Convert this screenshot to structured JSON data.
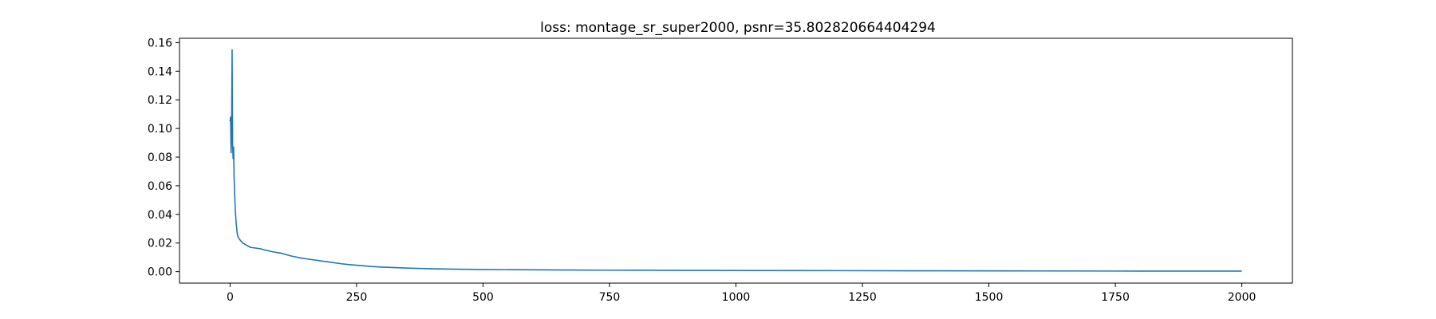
{
  "chart_data": {
    "type": "line",
    "title": "loss: montage_sr_super2000, psnr=35.802820664404294",
    "xlabel": "",
    "ylabel": "",
    "xlim": [
      -100,
      2100
    ],
    "ylim": [
      -0.008,
      0.163
    ],
    "x_ticks": [
      0,
      250,
      500,
      750,
      1000,
      1250,
      1500,
      1750,
      2000
    ],
    "x_tick_labels": [
      "0",
      "250",
      "500",
      "750",
      "1000",
      "1250",
      "1500",
      "1750",
      "2000"
    ],
    "y_ticks": [
      0.0,
      0.02,
      0.04,
      0.06,
      0.08,
      0.1,
      0.12,
      0.14,
      0.16
    ],
    "y_tick_labels": [
      "0.00",
      "0.02",
      "0.04",
      "0.06",
      "0.08",
      "0.10",
      "0.12",
      "0.14",
      "0.16"
    ],
    "grid": false,
    "legend": "none",
    "series": [
      {
        "color": "#1f77b4",
        "x": [
          0,
          1,
          2,
          3,
          4,
          5,
          6,
          7,
          8,
          10,
          12,
          14,
          16,
          18,
          20,
          25,
          30,
          40,
          50,
          60,
          70,
          80,
          90,
          100,
          110,
          120,
          140,
          160,
          180,
          200,
          220,
          240,
          260,
          280,
          300,
          350,
          400,
          450,
          500,
          600,
          700,
          800,
          900,
          1000,
          1200,
          1400,
          1600,
          1800,
          2000
        ],
        "y": [
          0.105,
          0.108,
          0.083,
          0.098,
          0.155,
          0.088,
          0.079,
          0.087,
          0.065,
          0.045,
          0.034,
          0.027,
          0.024,
          0.023,
          0.022,
          0.02,
          0.019,
          0.017,
          0.0165,
          0.016,
          0.015,
          0.0142,
          0.0135,
          0.013,
          0.012,
          0.011,
          0.0095,
          0.0085,
          0.0075,
          0.0065,
          0.0055,
          0.0048,
          0.0042,
          0.0036,
          0.0032,
          0.0025,
          0.002,
          0.0017,
          0.0015,
          0.0013,
          0.0011,
          0.001,
          0.0009,
          0.0008,
          0.0007,
          0.0006,
          0.0005,
          0.0004,
          0.0004
        ]
      }
    ]
  }
}
